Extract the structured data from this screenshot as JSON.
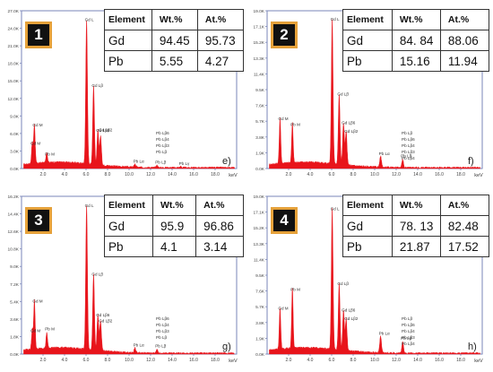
{
  "chart_data": [
    {
      "type": "area",
      "id": "1",
      "caption": "e)",
      "x_unit": "keV",
      "xlim": [
        0,
        20
      ],
      "ylim": [
        0,
        30
      ],
      "y_ticks": [
        "0.0K",
        "3.0K",
        "6.0K",
        "9.0K",
        "12.0K",
        "15.0K",
        "18.0K",
        "21.0K",
        "24.0K",
        "27.0K"
      ],
      "x_ticks": [
        "2.0",
        "4.0",
        "6.0",
        "8.0",
        "10.0",
        "12.0",
        "14.0",
        "16.0",
        "18.0"
      ],
      "table": {
        "header": [
          "Element",
          "Wt.%",
          "At.%"
        ],
        "rows": [
          [
            "Gd",
            "94.45",
            "95.73"
          ],
          [
            "Pb",
            "5.55",
            "4.27"
          ]
        ]
      },
      "peaks": [
        {
          "x": 1.2,
          "h": 7.5,
          "label": "Gd M"
        },
        {
          "x": 1.0,
          "h": 4.0,
          "label": "Gd M"
        },
        {
          "x": 2.35,
          "h": 2.0,
          "label": "Pb M"
        },
        {
          "x": 6.05,
          "h": 27.5,
          "label": "Gd L"
        },
        {
          "x": 6.7,
          "h": 15.0,
          "label": "Gd Lβ"
        },
        {
          "x": 7.1,
          "h": 6.5,
          "label": "Gd Lβ6"
        },
        {
          "x": 7.35,
          "h": 5.5,
          "label": "Gd Lβ2"
        },
        {
          "x": 10.55,
          "h": 0.6,
          "label": "Pb Lα"
        },
        {
          "x": 12.6,
          "h": 0.4,
          "label": "Pb Lβ"
        },
        {
          "x": 14.8,
          "h": 0.2,
          "label": "Pb Lγ"
        }
      ],
      "side_labels": [
        "Pb Lβ6",
        "Pb Lβ4",
        "Pb Lβ3",
        "Pb Lβ"
      ]
    },
    {
      "type": "area",
      "id": "2",
      "caption": "f)",
      "x_unit": "keV",
      "xlim": [
        0,
        20
      ],
      "ylim": [
        0,
        19
      ],
      "y_ticks": [
        "0.0K",
        "1.9K",
        "3.8K",
        "5.7K",
        "7.6K",
        "9.5K",
        "11.4K",
        "13.3K",
        "15.2K",
        "17.1K",
        "19.0K"
      ],
      "x_ticks": [
        "2.0",
        "4.0",
        "6.0",
        "8.0",
        "10.0",
        "12.0",
        "14.0",
        "16.0",
        "18.0"
      ],
      "table": {
        "header": [
          "Element",
          "Wt.%",
          "At.%"
        ],
        "rows": [
          [
            "Gd",
            "84. 84",
            "88.06"
          ],
          [
            "Pb",
            "15.16",
            "11.94"
          ]
        ]
      },
      "peaks": [
        {
          "x": 1.2,
          "h": 5.5,
          "label": "Gd M"
        },
        {
          "x": 2.35,
          "h": 4.8,
          "label": "Pb M"
        },
        {
          "x": 6.05,
          "h": 17.5,
          "label": "Gd L"
        },
        {
          "x": 6.7,
          "h": 8.5,
          "label": "Gd Lβ"
        },
        {
          "x": 7.1,
          "h": 5.0,
          "label": "Gd Lβ6"
        },
        {
          "x": 7.35,
          "h": 4.0,
          "label": "Gd Lβ2"
        },
        {
          "x": 10.55,
          "h": 1.3,
          "label": "Pb Lα"
        },
        {
          "x": 12.6,
          "h": 1.0,
          "label": "Pb Lβ"
        }
      ],
      "side_labels": [
        "Pb Lβ",
        "Pb Lβ6",
        "Pb Lβ4",
        "Pb Lβ3",
        "Pb Lβ4"
      ]
    },
    {
      "type": "area",
      "id": "3",
      "caption": "g)",
      "x_unit": "keV",
      "xlim": [
        0,
        20
      ],
      "ylim": [
        0,
        16.2
      ],
      "y_ticks": [
        "0.0K",
        "1.8K",
        "3.6K",
        "5.4K",
        "7.2K",
        "9.0K",
        "10.8K",
        "12.6K",
        "14.4K",
        "16.2K"
      ],
      "x_ticks": [
        "2.0",
        "4.0",
        "6.0",
        "8.0",
        "10.0",
        "12.0",
        "14.0",
        "16.0",
        "18.0"
      ],
      "table": {
        "header": [
          "Element",
          "Wt.%",
          "At.%"
        ],
        "rows": [
          [
            "Gd",
            "95.9",
            "96.86"
          ],
          [
            "Pb",
            "4.1",
            "3.14"
          ]
        ]
      },
      "peaks": [
        {
          "x": 1.2,
          "h": 5.0,
          "label": "Gd M"
        },
        {
          "x": 1.0,
          "h": 2.0,
          "label": "Gd M"
        },
        {
          "x": 2.35,
          "h": 1.6,
          "label": "Pb M"
        },
        {
          "x": 6.05,
          "h": 14.8,
          "label": "Gd L"
        },
        {
          "x": 6.7,
          "h": 7.8,
          "label": "Gd Lβ"
        },
        {
          "x": 7.1,
          "h": 3.6,
          "label": "Gd Lβ6"
        },
        {
          "x": 7.35,
          "h": 3.0,
          "label": "Gd Lβ2"
        },
        {
          "x": 10.55,
          "h": 0.5,
          "label": "Pb Lα"
        },
        {
          "x": 12.6,
          "h": 0.4,
          "label": "Pb Lβ"
        }
      ],
      "side_labels": [
        "Pb Lβ6",
        "Pb Lβ4",
        "Pb Lβ3",
        "Pb Lβ"
      ]
    },
    {
      "type": "area",
      "id": "4",
      "caption": "h)",
      "x_unit": "keV",
      "xlim": [
        0,
        20
      ],
      "ylim": [
        0,
        19
      ],
      "y_ticks": [
        "0.0K",
        "1.9K",
        "3.8K",
        "5.7K",
        "7.6K",
        "9.5K",
        "11.4K",
        "13.3K",
        "15.2K",
        "17.1K",
        "19.0K"
      ],
      "x_ticks": [
        "2.0",
        "4.0",
        "6.0",
        "8.0",
        "10.0",
        "12.0",
        "14.0",
        "16.0",
        "18.0"
      ],
      "table": {
        "header": [
          "Element",
          "Wt.%",
          "At.%"
        ],
        "rows": [
          [
            "Gd",
            "78. 13",
            "82.48"
          ],
          [
            "Pb",
            "21.87",
            "17.52"
          ]
        ]
      },
      "peaks": [
        {
          "x": 1.2,
          "h": 5.0,
          "label": "Gd M"
        },
        {
          "x": 2.35,
          "h": 7.3,
          "label": "Pb M"
        },
        {
          "x": 6.05,
          "h": 17.0,
          "label": "Gd L"
        },
        {
          "x": 6.7,
          "h": 8.0,
          "label": "Gd Lβ"
        },
        {
          "x": 7.1,
          "h": 4.8,
          "label": "Gd Lβ6"
        },
        {
          "x": 7.35,
          "h": 3.8,
          "label": "Gd Lβ2"
        },
        {
          "x": 10.55,
          "h": 2.0,
          "label": "Pb Lα"
        },
        {
          "x": 12.6,
          "h": 1.4,
          "label": "Pb Lβ"
        }
      ],
      "side_labels": [
        "Pb Lβ",
        "Pb Lβ6",
        "Pb Lβ4",
        "Pb Lβ3",
        "Pb Lβ4"
      ]
    }
  ],
  "colors": {
    "spectrum": "#e8141b",
    "axis": "#7a86b8",
    "label": "#333333",
    "badge_border": "#e5a13a"
  }
}
